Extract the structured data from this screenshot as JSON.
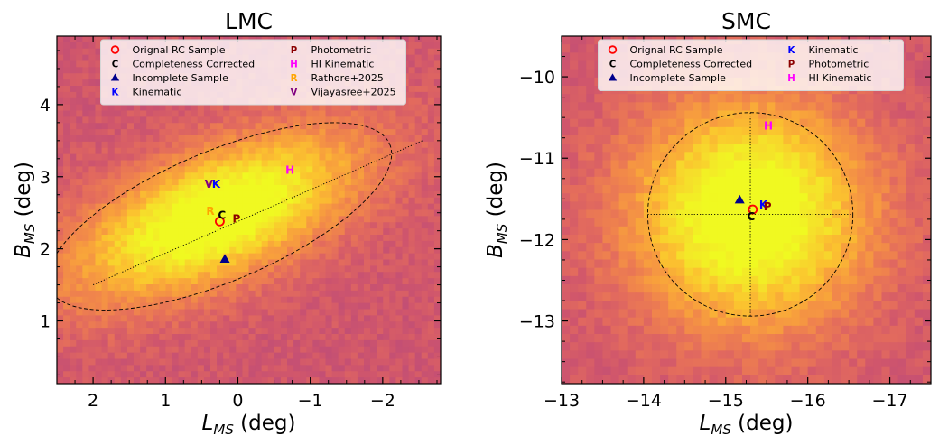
{
  "chart_data": [
    {
      "type": "heatmap",
      "title": "LMC",
      "xlabel": "L",
      "xlabel_sub": "MS",
      "xlabel_unit": " (deg)",
      "ylabel": "B",
      "ylabel_sub": "MS",
      "ylabel_unit": " (deg)",
      "xlim": [
        2.5,
        -2.8
      ],
      "ylim": [
        0.13,
        4.95
      ],
      "xticks": [
        2,
        1,
        0,
        -1,
        -2
      ],
      "xtick_labels": [
        "2",
        "1",
        "0",
        "−1",
        "−2"
      ],
      "yticks": [
        1,
        2,
        3,
        4
      ],
      "ytick_labels": [
        "1",
        "2",
        "3",
        "4"
      ],
      "ellipse": {
        "center": [
          0.25,
          2.45
        ],
        "semi_major": 2.55,
        "semi_minor": 0.9,
        "angle_deg": 23
      },
      "major_axis": {
        "from": [
          2.0,
          1.5
        ],
        "to": [
          -2.55,
          3.5
        ]
      },
      "density": {
        "center": [
          0.3,
          2.45
        ],
        "sigma_major": 1.5,
        "sigma_minor": 0.62,
        "angle_deg": 23
      },
      "markers": [
        {
          "key": "orig",
          "x": 0.25,
          "y": 2.38
        },
        {
          "key": "comp",
          "x": 0.22,
          "y": 2.47
        },
        {
          "key": "inc",
          "x": 0.18,
          "y": 1.86
        },
        {
          "key": "kin",
          "x": 0.3,
          "y": 2.9
        },
        {
          "key": "phot",
          "x": 0.02,
          "y": 2.42
        },
        {
          "key": "hi",
          "x": -0.72,
          "y": 3.1
        },
        {
          "key": "rath",
          "x": 0.38,
          "y": 2.53
        },
        {
          "key": "vija",
          "x": 0.4,
          "y": 2.9
        }
      ],
      "legend": {
        "location": "upper-center",
        "columns": 2,
        "entries": [
          {
            "key": "orig",
            "label": "Orignal RC Sample"
          },
          {
            "key": "comp",
            "label": "Completeness Corrected"
          },
          {
            "key": "inc",
            "label": "Incomplete Sample"
          },
          {
            "key": "kin",
            "label": "Kinematic"
          },
          {
            "key": "phot",
            "label": "Photometric"
          },
          {
            "key": "hi",
            "label": "HI Kinematic"
          },
          {
            "key": "rath",
            "label": "Rathore+2025"
          },
          {
            "key": "vija",
            "label": "Vijayasree+2025"
          }
        ]
      }
    },
    {
      "type": "heatmap",
      "title": "SMC",
      "xlabel": "L",
      "xlabel_sub": "MS",
      "xlabel_unit": " (deg)",
      "ylabel": "B",
      "ylabel_sub": "MS",
      "ylabel_unit": " (deg)",
      "xlim": [
        -13.0,
        -17.5
      ],
      "ylim": [
        -13.77,
        -9.5
      ],
      "xticks": [
        -13,
        -14,
        -15,
        -16,
        -17
      ],
      "xtick_labels": [
        "−13",
        "−14",
        "−15",
        "−16",
        "−17"
      ],
      "yticks": [
        -10,
        -11,
        -12,
        -13
      ],
      "ytick_labels": [
        "−10",
        "−11",
        "−12",
        "−13"
      ],
      "ellipse": {
        "center": [
          -15.3,
          -11.69
        ],
        "semi_major": 1.25,
        "semi_minor": 1.25,
        "angle_deg": 0
      },
      "crosshair": {
        "h": [
          -14.05,
          -16.55,
          -11.69
        ],
        "v": [
          -15.3,
          -10.44,
          -12.94
        ]
      },
      "density": {
        "center": [
          -15.3,
          -11.69
        ],
        "sigma_major": 1.05,
        "sigma_minor": 1.0,
        "angle_deg": 0
      },
      "markers": [
        {
          "key": "orig",
          "x": -15.33,
          "y": -11.63
        },
        {
          "key": "comp",
          "x": -15.31,
          "y": -11.71
        },
        {
          "key": "inc",
          "x": -15.17,
          "y": -11.51
        },
        {
          "key": "kin",
          "x": -15.46,
          "y": -11.57
        },
        {
          "key": "phot",
          "x": -15.51,
          "y": -11.59
        },
        {
          "key": "hi",
          "x": -15.52,
          "y": -10.6
        }
      ],
      "legend": {
        "location": "upper-center",
        "columns": 2,
        "entries": [
          {
            "key": "orig",
            "label": "Orignal RC Sample"
          },
          {
            "key": "comp",
            "label": "Completeness Corrected"
          },
          {
            "key": "inc",
            "label": "Incomplete Sample"
          },
          {
            "key": "kin",
            "label": "Kinematic"
          },
          {
            "key": "phot",
            "label": "Photometric"
          },
          {
            "key": "hi",
            "label": "HI Kinematic"
          }
        ]
      }
    }
  ],
  "marker_styles": {
    "orig": {
      "symbol": "ring",
      "glyph": "",
      "color": "#ff0000"
    },
    "comp": {
      "symbol": "letter",
      "glyph": "C",
      "color": "#000000"
    },
    "inc": {
      "symbol": "triangle",
      "glyph": "",
      "color": "#00008b"
    },
    "kin": {
      "symbol": "letter",
      "glyph": "K",
      "color": "#0000ff"
    },
    "phot": {
      "symbol": "letter",
      "glyph": "P",
      "color": "#8b0000"
    },
    "hi": {
      "symbol": "letter",
      "glyph": "H",
      "color": "#ff00ff"
    },
    "rath": {
      "symbol": "letter",
      "glyph": "R",
      "color": "#ffa500"
    },
    "vija": {
      "symbol": "letter",
      "glyph": "V",
      "color": "#800080"
    }
  },
  "colormap": [
    "#ba4a7a",
    "#d0566c",
    "#e36b5d",
    "#f0844c",
    "#f8a13c",
    "#fbc22f",
    "#f5e12a",
    "#f0f921"
  ]
}
